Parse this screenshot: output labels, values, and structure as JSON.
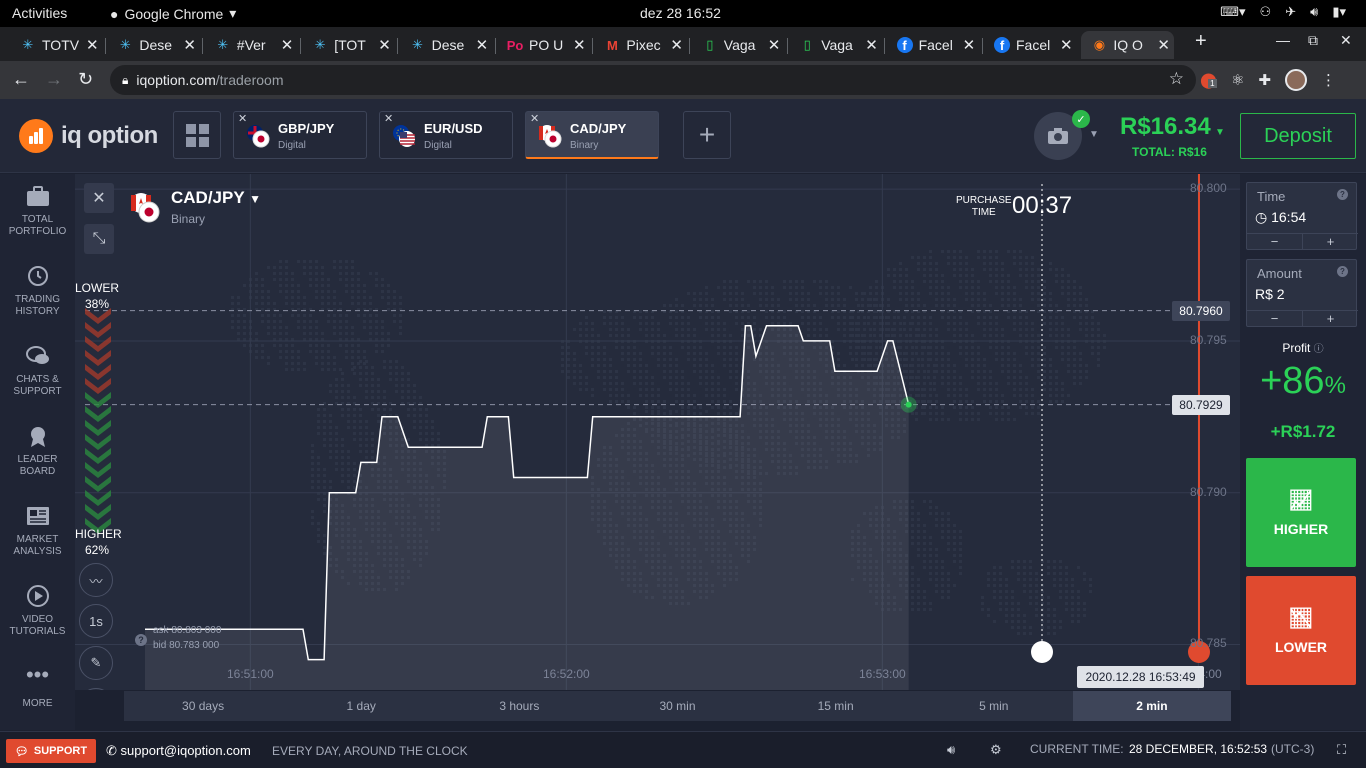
{
  "gnome": {
    "activities": "Activities",
    "app_name": "Google Chrome",
    "clock": "dez 28  16:52"
  },
  "browser": {
    "tabs": [
      {
        "label": "TOTV",
        "icon": "asterisk-icon",
        "color": "#4fc3f7"
      },
      {
        "label": "Dese",
        "icon": "asterisk-icon",
        "color": "#4fc3f7"
      },
      {
        "label": "#Ver",
        "icon": "asterisk-icon",
        "color": "#4fc3f7"
      },
      {
        "label": "[TOT",
        "icon": "asterisk-icon",
        "color": "#4fc3f7"
      },
      {
        "label": "Dese",
        "icon": "asterisk-icon",
        "color": "#4fc3f7"
      },
      {
        "label": "PO U",
        "icon": "po-icon",
        "color": "#e91e63"
      },
      {
        "label": "Pixec",
        "icon": "gmail-icon",
        "color": "#ea4335"
      },
      {
        "label": "Vaga",
        "icon": "phone-icon",
        "color": "#2bd157"
      },
      {
        "label": "Vaga",
        "icon": "phone-icon",
        "color": "#2bd157"
      },
      {
        "label": "Facel",
        "icon": "facebook-icon",
        "color": "#1877f2"
      },
      {
        "label": "Facel",
        "icon": "facebook-icon",
        "color": "#1877f2"
      },
      {
        "label": "IQ O",
        "icon": "iq-icon",
        "color": "#ff7a1a"
      }
    ],
    "url_host": "iqoption.com",
    "url_path": "/traderoom",
    "extension_badge": "1"
  },
  "header": {
    "logo_text": "iq option",
    "assets": [
      {
        "name": "GBP/JPY",
        "type": "Digital"
      },
      {
        "name": "EUR/USD",
        "type": "Digital"
      },
      {
        "name": "CAD/JPY",
        "type": "Binary"
      }
    ],
    "balance": "R$16.34",
    "balance_total": "TOTAL: R$16",
    "deposit_label": "Deposit"
  },
  "sidebar": {
    "items": [
      {
        "label_1": "TOTAL",
        "label_2": "PORTFOLIO"
      },
      {
        "label_1": "TRADING",
        "label_2": "HISTORY"
      },
      {
        "label_1": "CHATS &",
        "label_2": "SUPPORT"
      },
      {
        "label_1": "LEADER",
        "label_2": "BOARD"
      },
      {
        "label_1": "MARKET",
        "label_2": "ANALYSIS"
      },
      {
        "label_1": "VIDEO",
        "label_2": "TUTORIALS"
      },
      {
        "label_1": "",
        "label_2": "MORE"
      }
    ]
  },
  "chart": {
    "asset_name": "CAD/JPY",
    "asset_type": "Binary",
    "purchase_label_1": "PURCHASE",
    "purchase_label_2": "TIME",
    "purchase_time": "00:37",
    "lower_label": "LOWER",
    "lower_pct": "38%",
    "higher_label": "HIGHER",
    "higher_pct": "62%",
    "ask": "ask 80.803 000",
    "bid": "bid 80.783 000",
    "seconds_label": "1s",
    "date_tag": "2020.12.28 16:53:49",
    "colors": {
      "up": "#2bb74a",
      "down": "#e04a2f",
      "line": "#ffffff",
      "expiry": "#e04a2f"
    }
  },
  "chart_data": {
    "type": "line",
    "xlabel": "",
    "ylabel": "",
    "x_ticks": [
      "16:51:00",
      "16:52:00",
      "16:53:00",
      "16:54:00"
    ],
    "y_ticks": [
      "80.785",
      "80.790",
      "80.795",
      "80.800"
    ],
    "ylim": [
      80.7835,
      80.8005
    ],
    "x_range_seconds": [
      0,
      185
    ],
    "series": [
      {
        "points": [
          [
            0,
            80.7855
          ],
          [
            30,
            80.7855
          ],
          [
            31,
            80.7845
          ],
          [
            34,
            80.7845
          ],
          [
            35,
            80.79
          ],
          [
            40,
            80.79
          ],
          [
            41,
            80.791
          ],
          [
            44,
            80.791
          ],
          [
            45,
            80.7925
          ],
          [
            48,
            80.7925
          ],
          [
            50,
            80.7915
          ],
          [
            64,
            80.7915
          ],
          [
            65,
            80.7925
          ],
          [
            69,
            80.7925
          ],
          [
            70,
            80.7905
          ],
          [
            84,
            80.7905
          ],
          [
            85,
            80.7925
          ],
          [
            113,
            80.7925
          ],
          [
            114,
            80.7955
          ],
          [
            115,
            80.7955
          ],
          [
            116,
            80.7945
          ],
          [
            118,
            80.7955
          ],
          [
            124,
            80.7955
          ],
          [
            125,
            80.795
          ],
          [
            130,
            80.795
          ],
          [
            131,
            80.794
          ],
          [
            139,
            80.794
          ],
          [
            141,
            80.795
          ],
          [
            142,
            80.795
          ],
          [
            145,
            80.7929
          ]
        ]
      }
    ],
    "price_levels": [
      "80.7960",
      "80.7929"
    ]
  },
  "range_bar": {
    "items": [
      "30 days",
      "1 day",
      "3 hours",
      "30 min",
      "15 min",
      "5 min",
      "2 min"
    ],
    "active": "2 min"
  },
  "rpanel": {
    "time_label": "Time",
    "time_value": "16:54",
    "amount_label": "Amount",
    "amount_value": "R$ 2",
    "minus": "−",
    "plus": "+",
    "profit_label": "Profit",
    "profit_pct": "+86",
    "profit_pct_unit": "%",
    "profit_value": "+R$1.72",
    "higher_label": "HIGHER",
    "lower_label": "LOWER"
  },
  "footer": {
    "support_label": "SUPPORT",
    "email": "support@iqoption.com",
    "hours": "EVERY DAY, AROUND THE CLOCK",
    "current_time_label": "CURRENT TIME:",
    "current_time_value": "28 DECEMBER, 16:52:53",
    "timezone": "(UTC-3)"
  }
}
